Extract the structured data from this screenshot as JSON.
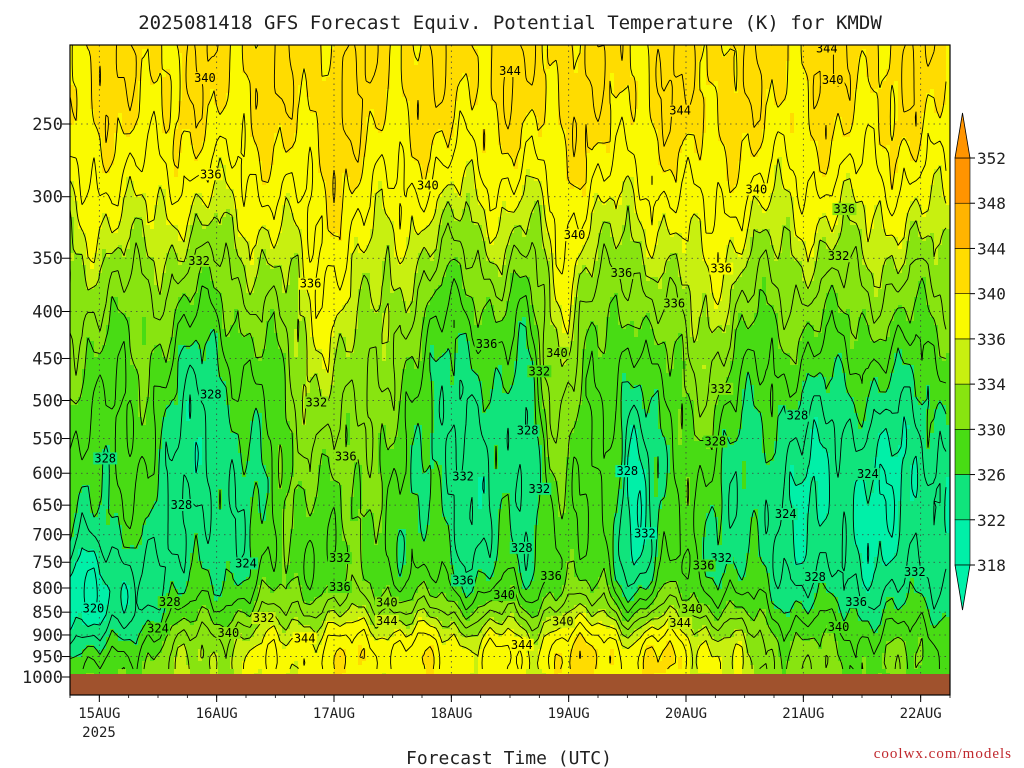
{
  "chart_data": {
    "type": "heatmap",
    "title": "2025081418 GFS Forecast Equiv. Potential Temperature (K) for KMDW",
    "xlabel": "Forecast Time (UTC)",
    "ylabel": "",
    "x_ticks": [
      "15AUG",
      "16AUG",
      "17AUG",
      "18AUG",
      "19AUG",
      "20AUG",
      "21AUG",
      "22AUG"
    ],
    "x_year": "2025",
    "x_range_days": [
      14.75,
      22.25
    ],
    "y_ticks": [
      "250",
      "300",
      "350",
      "400",
      "450",
      "500",
      "550",
      "600",
      "650",
      "700",
      "750",
      "800",
      "850",
      "900",
      "950",
      "1000"
    ],
    "y_range_hpa": [
      200,
      1000
    ],
    "y_scale": "log-pressure",
    "grid": true,
    "contour_interval_k": 2,
    "colorbar_ticks": [
      "352",
      "348",
      "344",
      "340",
      "336",
      "334",
      "330",
      "326",
      "322",
      "318"
    ],
    "colorbar_colors": [
      "#00f0a8",
      "#10e47c",
      "#48dc14",
      "#88e410",
      "#c8f010",
      "#fafa00",
      "#ffdc00",
      "#ffb400",
      "#ff9400"
    ],
    "ground_color": "#a0522d",
    "contour_labels": [
      {
        "text": "344",
        "day": 21.2,
        "hpa": 208
      },
      {
        "text": "340",
        "day": 15.9,
        "hpa": 224
      },
      {
        "text": "344",
        "day": 18.5,
        "hpa": 220
      },
      {
        "text": "340",
        "day": 21.25,
        "hpa": 225
      },
      {
        "text": "344",
        "day": 19.95,
        "hpa": 243
      },
      {
        "text": "336",
        "day": 15.95,
        "hpa": 285
      },
      {
        "text": "340",
        "day": 17.8,
        "hpa": 293
      },
      {
        "text": "340",
        "day": 20.6,
        "hpa": 296
      },
      {
        "text": "336",
        "day": 21.35,
        "hpa": 311
      },
      {
        "text": "340",
        "day": 19.05,
        "hpa": 332
      },
      {
        "text": "332",
        "day": 15.85,
        "hpa": 354
      },
      {
        "text": "336",
        "day": 20.3,
        "hpa": 361
      },
      {
        "text": "332",
        "day": 21.3,
        "hpa": 350
      },
      {
        "text": "336",
        "day": 16.8,
        "hpa": 375
      },
      {
        "text": "336",
        "day": 19.45,
        "hpa": 365
      },
      {
        "text": "336",
        "day": 19.9,
        "hpa": 394
      },
      {
        "text": "336",
        "day": 18.3,
        "hpa": 436
      },
      {
        "text": "340",
        "day": 18.9,
        "hpa": 446
      },
      {
        "text": "332",
        "day": 18.75,
        "hpa": 467
      },
      {
        "text": "332",
        "day": 20.3,
        "hpa": 488
      },
      {
        "text": "328",
        "day": 15.95,
        "hpa": 495
      },
      {
        "text": "332",
        "day": 16.85,
        "hpa": 505
      },
      {
        "text": "328",
        "day": 20.95,
        "hpa": 522
      },
      {
        "text": "328",
        "day": 18.65,
        "hpa": 542
      },
      {
        "text": "328",
        "day": 20.25,
        "hpa": 557
      },
      {
        "text": "328",
        "day": 15.05,
        "hpa": 581
      },
      {
        "text": "336",
        "day": 17.1,
        "hpa": 578
      },
      {
        "text": "328",
        "day": 19.5,
        "hpa": 600
      },
      {
        "text": "324",
        "day": 21.55,
        "hpa": 604
      },
      {
        "text": "332",
        "day": 18.1,
        "hpa": 608
      },
      {
        "text": "332",
        "day": 18.75,
        "hpa": 627
      },
      {
        "text": "328",
        "day": 15.7,
        "hpa": 653
      },
      {
        "text": "324",
        "day": 20.85,
        "hpa": 668
      },
      {
        "text": "332",
        "day": 19.65,
        "hpa": 701
      },
      {
        "text": "328",
        "day": 18.6,
        "hpa": 727
      },
      {
        "text": "332",
        "day": 17.05,
        "hpa": 746
      },
      {
        "text": "332",
        "day": 20.3,
        "hpa": 746
      },
      {
        "text": "324",
        "day": 16.25,
        "hpa": 756
      },
      {
        "text": "336",
        "day": 20.15,
        "hpa": 760
      },
      {
        "text": "332",
        "day": 21.95,
        "hpa": 772
      },
      {
        "text": "336",
        "day": 18.85,
        "hpa": 780
      },
      {
        "text": "328",
        "day": 21.1,
        "hpa": 782
      },
      {
        "text": "336",
        "day": 18.1,
        "hpa": 789
      },
      {
        "text": "336",
        "day": 17.05,
        "hpa": 802
      },
      {
        "text": "340",
        "day": 18.45,
        "hpa": 818
      },
      {
        "text": "328",
        "day": 15.6,
        "hpa": 833
      },
      {
        "text": "336",
        "day": 21.45,
        "hpa": 833
      },
      {
        "text": "340",
        "day": 17.45,
        "hpa": 834
      },
      {
        "text": "320",
        "day": 14.95,
        "hpa": 846
      },
      {
        "text": "340",
        "day": 20.05,
        "hpa": 848
      },
      {
        "text": "332",
        "day": 16.4,
        "hpa": 867
      },
      {
        "text": "344",
        "day": 17.45,
        "hpa": 873
      },
      {
        "text": "340",
        "day": 18.95,
        "hpa": 875
      },
      {
        "text": "344",
        "day": 19.95,
        "hpa": 878
      },
      {
        "text": "324",
        "day": 15.5,
        "hpa": 890
      },
      {
        "text": "340",
        "day": 21.3,
        "hpa": 887
      },
      {
        "text": "340",
        "day": 16.1,
        "hpa": 900
      },
      {
        "text": "344",
        "day": 16.75,
        "hpa": 912
      },
      {
        "text": "344",
        "day": 18.6,
        "hpa": 927
      }
    ]
  },
  "credit": "coolwx.com/models"
}
